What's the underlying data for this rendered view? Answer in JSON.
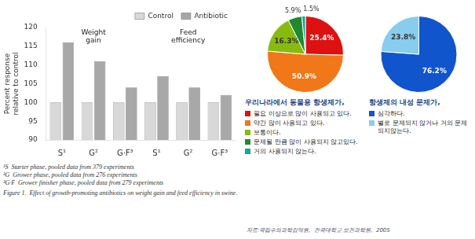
{
  "chart_data": [
    {
      "type": "bar",
      "categories": [
        "S¹",
        "G²",
        "G·F³",
        "S¹",
        "G²",
        "G·F³"
      ],
      "series": [
        {
          "name": "Control",
          "color": "#d8d8d8",
          "values": [
            100,
            100,
            100,
            100,
            100,
            100
          ]
        },
        {
          "name": "Antibiotic",
          "color": "#a8a8a8",
          "values": [
            116,
            111,
            104,
            107,
            104,
            102
          ]
        }
      ],
      "ylabel": "Percent response\nrelative to control",
      "ylim": [
        90,
        120
      ],
      "yticks": [
        90,
        95,
        100,
        105,
        110,
        115,
        120
      ],
      "grid": false,
      "legend": "upper right",
      "annotations": [
        "Weight\ngain",
        "Feed\nefficiency"
      ],
      "footnotes": [
        "¹S  Starter phase, pooled data from 379 experiments",
        "²G  Grower phase, pooled data from 276 experiments",
        "³G·F  Grower finisher phase, pooled data from 279 experiments"
      ],
      "caption": "Figure 1.  Effect of growth-promoting antibiotics on weight gain and feed efficiency in swine."
    },
    {
      "type": "pie",
      "title": "우리나라에서 동물용 항생제가,",
      "categories": [
        "필요 이상으로 많이 사용되고 있다.",
        "약간 많이 사용되고 있다.",
        "보통이다.",
        "문제될 만큼 많이 사용되지 않고있다.",
        "거의 사용되지 않는다."
      ],
      "values": [
        25.4,
        50.9,
        16.3,
        5.9,
        1.5
      ],
      "value_labels": [
        "25.4%",
        "50.9%",
        "16.3%",
        "5.9%",
        "1.5%"
      ],
      "colors": [
        "#dd1111",
        "#f07818",
        "#88bb10",
        "#208830",
        "#10a898"
      ],
      "data_labels": true,
      "legend": "bottom"
    },
    {
      "type": "pie",
      "title": "항생제의 내성 문제가,",
      "categories": [
        "심각하다.",
        "별로 문제되지 않거나 거의 문제되지않는다."
      ],
      "values": [
        76.2,
        23.8
      ],
      "value_labels": [
        "76.2%",
        "23.8%"
      ],
      "colors": [
        "#1155cc",
        "#88ccee"
      ],
      "data_labels": true,
      "legend": "bottom"
    }
  ],
  "source": "자료:국립수의과학검역원,  건국대학교 보건과학원,  2005"
}
